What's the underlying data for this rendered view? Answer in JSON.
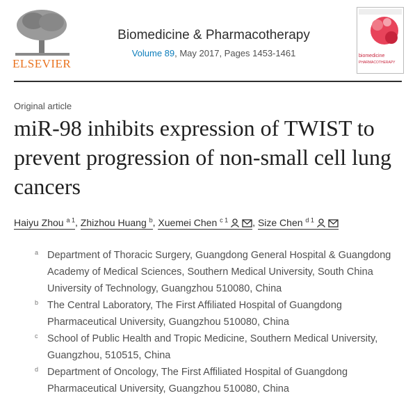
{
  "header": {
    "publisher": "ELSEVIER",
    "journal": "Biomedicine & Pharmacotherapy",
    "volume": "Volume 89",
    "issue_info": ", May 2017, Pages 1453-1461",
    "cover_title": "biomedicine",
    "cover_subtitle": "PHARMACOTHERAPY"
  },
  "article": {
    "type": "Original article",
    "title": "miR-98 inhibits expression of TWIST to prevent progression of non-small cell lung cancers",
    "separator": ",",
    "authors": [
      {
        "name": "Haiyu Zhou",
        "sup": "a 1"
      },
      {
        "name": "Zhizhou Huang",
        "sup": "b"
      },
      {
        "name": "Xuemei Chen",
        "sup": "c 1"
      },
      {
        "name": "Size Chen",
        "sup": "d 1"
      }
    ],
    "affiliations": [
      {
        "label": "a",
        "text": "Department of Thoracic Surgery, Guangdong General Hospital & Guangdong Academy of Medical Sciences, Southern Medical University, South China University of Technology, Guangzhou 510080, China"
      },
      {
        "label": "b",
        "text": "The Central Laboratory, The First Affiliated Hospital of Guangdong Pharmaceutical University, Guangzhou 510080, China"
      },
      {
        "label": "c",
        "text": "School of Public Health and Tropic Medicine, Southern Medical University, Guangzhou, 510515, China"
      },
      {
        "label": "d",
        "text": "Department of Oncology, The First Affiliated Hospital of Guangdong Pharmaceutical University, Guangzhou 510080, China"
      }
    ]
  }
}
